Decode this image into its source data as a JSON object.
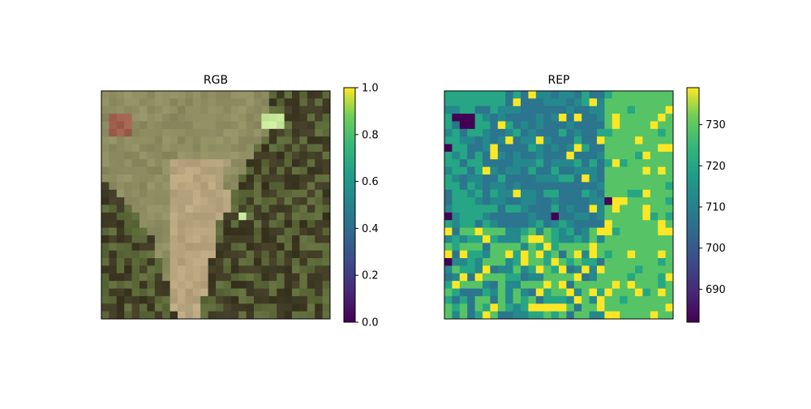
{
  "chart_data": [
    {
      "type": "heatmap",
      "title": "RGB",
      "xlabel": "",
      "ylabel": "",
      "grid": false,
      "axis_ticks": false,
      "pixel_grid": [
        30,
        30
      ],
      "colorbar": {
        "colormap": "viridis",
        "range": [
          0.0,
          1.0
        ],
        "ticks": [
          "0.0",
          "0.2",
          "0.4",
          "0.6",
          "0.8",
          "1.0"
        ],
        "tick_values": [
          0.0,
          0.2,
          0.4,
          0.6,
          0.8,
          1.0
        ]
      },
      "palette": {
        "olive_green": "#8e8d62",
        "light_tan": "#b7a47f",
        "dark_brown": "#3f3a24",
        "forest_green": "#5e6a3a",
        "red_patch": "#a0604e",
        "bright_green": "#c6e79a"
      }
    },
    {
      "type": "heatmap",
      "title": "REP",
      "xlabel": "",
      "ylabel": "",
      "grid": false,
      "axis_ticks": false,
      "pixel_grid": [
        30,
        30
      ],
      "colorbar": {
        "colormap": "viridis",
        "range": [
          682,
          739
        ],
        "ticks": [
          "690",
          "700",
          "710",
          "720",
          "730"
        ],
        "tick_values": [
          690,
          700,
          710,
          720,
          730
        ]
      },
      "value_levels": [
        682,
        707,
        712,
        720,
        729,
        739
      ]
    }
  ]
}
